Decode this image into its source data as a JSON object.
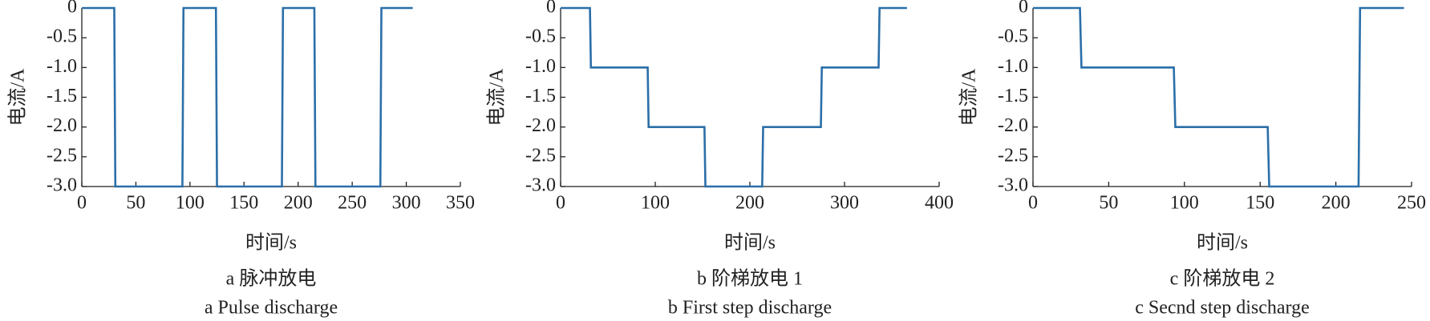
{
  "chart_data": [
    {
      "type": "line",
      "caption": "a 脉冲放电",
      "caption_en": "a Pulse discharge",
      "xlabel": "时间/s",
      "ylabel": "电流/A",
      "color": "#2b6fa8",
      "x": [
        0,
        30,
        31,
        93,
        94,
        124,
        125,
        185,
        186,
        215,
        216,
        276,
        277,
        306
      ],
      "values": [
        0,
        0,
        -3,
        -3,
        0,
        0,
        -3,
        -3,
        0,
        0,
        -3,
        -3,
        0,
        0
      ],
      "xlim": [
        0,
        350
      ],
      "xticks": [
        0,
        50,
        100,
        150,
        200,
        250,
        300,
        350
      ],
      "ylim": [
        -3,
        0
      ],
      "yticks": [
        0,
        -0.5,
        {
          "value": -1,
          "label": "-1.0"
        },
        -1.5,
        {
          "value": -2,
          "label": "-2.0"
        },
        -2.5,
        {
          "value": -3,
          "label": "-3.0"
        }
      ],
      "grid": false
    },
    {
      "type": "line",
      "caption": "b 阶梯放电 1",
      "caption_en": "b First step discharge",
      "xlabel": "时间/s",
      "ylabel": "电流/A",
      "color": "#2b6fa8",
      "x": [
        0,
        31,
        32,
        92,
        93,
        152,
        153,
        213,
        214,
        275,
        276,
        336,
        337,
        366
      ],
      "values": [
        0,
        0,
        -1,
        -1,
        -2,
        -2,
        -3,
        -3,
        -2,
        -2,
        -1,
        -1,
        0,
        0
      ],
      "xlim": [
        0,
        400
      ],
      "xticks": [
        0,
        100,
        200,
        300,
        400
      ],
      "ylim": [
        -3,
        0
      ],
      "yticks": [
        0,
        -0.5,
        {
          "value": -1,
          "label": "-1.0"
        },
        -1.5,
        {
          "value": -2,
          "label": "-2.0"
        },
        -2.5,
        {
          "value": -3,
          "label": "-3.0"
        }
      ],
      "grid": false
    },
    {
      "type": "line",
      "caption": "c 阶梯放电 2",
      "caption_en": "c Secnd step discharge",
      "xlabel": "时间/s",
      "ylabel": "电流/A",
      "color": "#2b6fa8",
      "x": [
        0,
        31,
        32,
        93,
        94,
        155,
        156,
        215,
        216,
        245
      ],
      "values": [
        0,
        0,
        -1,
        -1,
        -2,
        -2,
        -3,
        -3,
        0,
        0
      ],
      "xlim": [
        0,
        250
      ],
      "xticks": [
        0,
        50,
        100,
        150,
        200,
        250
      ],
      "ylim": [
        -3,
        0
      ],
      "yticks": [
        0,
        -0.5,
        {
          "value": -1,
          "label": "-1.0"
        },
        -1.5,
        {
          "value": -2,
          "label": "-2.0"
        },
        -2.5,
        {
          "value": -3,
          "label": "-3.0"
        }
      ],
      "grid": false
    }
  ]
}
